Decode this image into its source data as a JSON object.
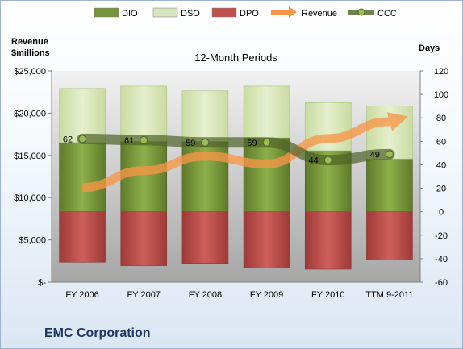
{
  "chart_data": {
    "type": "bar",
    "title": "12-Month Periods",
    "categories": [
      "FY 2006",
      "FY 2007",
      "FY 2008",
      "FY 2009",
      "FY 2010",
      "TTM 9-2011"
    ],
    "left_axis": {
      "title_line1": "Revenue",
      "title_line2": "$millions",
      "ylim": [
        0,
        25000
      ],
      "tick_labels": [
        "$-",
        "$5,000",
        "$10,000",
        "$15,000",
        "$20,000",
        "$25,000"
      ],
      "tick_values": [
        0,
        5000,
        10000,
        15000,
        20000,
        25000
      ]
    },
    "right_axis": {
      "title": "Days",
      "ylim": [
        -60,
        120
      ],
      "tick_values": [
        -60,
        -40,
        -20,
        0,
        20,
        40,
        60,
        80,
        100,
        120
      ],
      "tick_labels": [
        "-60",
        "-40",
        "-20",
        "0",
        "20",
        "40",
        "60",
        "80",
        "100",
        "120"
      ]
    },
    "series": [
      {
        "name": "DIO",
        "type": "stacked-bar",
        "axis": "days",
        "values": [
          59,
          60,
          60,
          63,
          52,
          45
        ]
      },
      {
        "name": "DSO",
        "type": "stacked-bar",
        "axis": "days",
        "values": [
          46,
          47,
          43,
          44,
          41,
          45
        ]
      },
      {
        "name": "DPO",
        "type": "stacked-bar",
        "axis": "days",
        "values": [
          -43,
          -46,
          -44,
          -48,
          -49,
          -41
        ]
      },
      {
        "name": "Revenue",
        "type": "line-arrow",
        "axis": "revenue",
        "values": [
          11200,
          13200,
          14900,
          14000,
          17000,
          19000
        ]
      },
      {
        "name": "CCC",
        "type": "line",
        "axis": "days",
        "values": [
          62,
          61,
          59,
          59,
          44,
          49
        ],
        "labels": [
          "62",
          "61",
          "59",
          "59",
          "44",
          "49"
        ]
      }
    ],
    "colors": {
      "DIO": "#77933c",
      "DSO": "#d7e4bd",
      "DPO": "#c0504d",
      "Revenue": "#f79646",
      "CCC": "#4f6228"
    },
    "legend_position": "top",
    "grid": false
  },
  "footer": {
    "company": "EMC Corporation"
  }
}
